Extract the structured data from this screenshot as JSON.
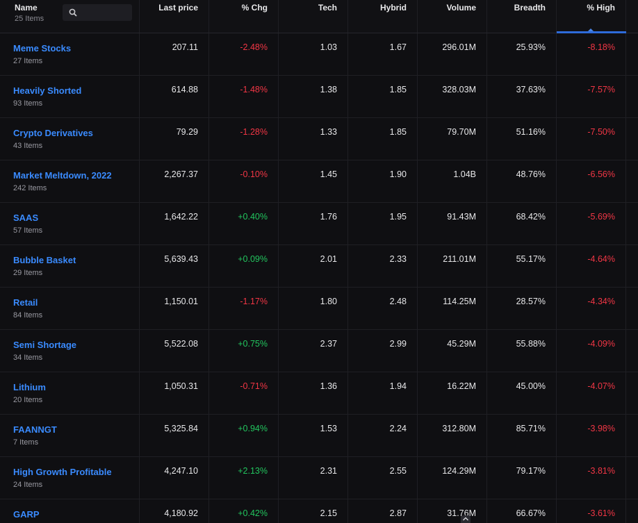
{
  "header": {
    "name_label": "Name",
    "items_count": "25 Items",
    "search_icon": "search-icon",
    "columns": [
      "Last price",
      "% Chg",
      "Tech",
      "Hybrid",
      "Volume",
      "Breadth",
      "% High"
    ],
    "sorted_column": "% High",
    "accent_color": "#2e6bd9"
  },
  "colors": {
    "negative": "#f23645",
    "positive": "#22c55e",
    "link": "#3a8bff"
  },
  "rows": [
    {
      "name": "Meme Stocks",
      "count": "27 Items",
      "last_price": "207.11",
      "chg": "-2.48%",
      "tech": "1.03",
      "hybrid": "1.67",
      "volume": "296.01M",
      "breadth": "25.93%",
      "high": "-8.18%"
    },
    {
      "name": "Heavily Shorted",
      "count": "93 Items",
      "last_price": "614.88",
      "chg": "-1.48%",
      "tech": "1.38",
      "hybrid": "1.85",
      "volume": "328.03M",
      "breadth": "37.63%",
      "high": "-7.57%"
    },
    {
      "name": "Crypto Derivatives",
      "count": "43 Items",
      "last_price": "79.29",
      "chg": "-1.28%",
      "tech": "1.33",
      "hybrid": "1.85",
      "volume": "79.70M",
      "breadth": "51.16%",
      "high": "-7.50%"
    },
    {
      "name": "Market Meltdown, 2022",
      "count": "242 Items",
      "last_price": "2,267.37",
      "chg": "-0.10%",
      "tech": "1.45",
      "hybrid": "1.90",
      "volume": "1.04B",
      "breadth": "48.76%",
      "high": "-6.56%"
    },
    {
      "name": "SAAS",
      "count": "57 Items",
      "last_price": "1,642.22",
      "chg": "+0.40%",
      "tech": "1.76",
      "hybrid": "1.95",
      "volume": "91.43M",
      "breadth": "68.42%",
      "high": "-5.69%"
    },
    {
      "name": "Bubble Basket",
      "count": "29 Items",
      "last_price": "5,639.43",
      "chg": "+0.09%",
      "tech": "2.01",
      "hybrid": "2.33",
      "volume": "211.01M",
      "breadth": "55.17%",
      "high": "-4.64%"
    },
    {
      "name": "Retail",
      "count": "84 Items",
      "last_price": "1,150.01",
      "chg": "-1.17%",
      "tech": "1.80",
      "hybrid": "2.48",
      "volume": "114.25M",
      "breadth": "28.57%",
      "high": "-4.34%"
    },
    {
      "name": "Semi Shortage",
      "count": "34 Items",
      "last_price": "5,522.08",
      "chg": "+0.75%",
      "tech": "2.37",
      "hybrid": "2.99",
      "volume": "45.29M",
      "breadth": "55.88%",
      "high": "-4.09%"
    },
    {
      "name": "Lithium",
      "count": "20 Items",
      "last_price": "1,050.31",
      "chg": "-0.71%",
      "tech": "1.36",
      "hybrid": "1.94",
      "volume": "16.22M",
      "breadth": "45.00%",
      "high": "-4.07%"
    },
    {
      "name": "FAANNGT",
      "count": "7 Items",
      "last_price": "5,325.84",
      "chg": "+0.94%",
      "tech": "1.53",
      "hybrid": "2.24",
      "volume": "312.80M",
      "breadth": "85.71%",
      "high": "-3.98%"
    },
    {
      "name": "High Growth Profitable",
      "count": "24 Items",
      "last_price": "4,247.10",
      "chg": "+2.13%",
      "tech": "2.31",
      "hybrid": "2.55",
      "volume": "124.29M",
      "breadth": "79.17%",
      "high": "-3.81%"
    },
    {
      "name": "GARP",
      "count": "",
      "last_price": "4,180.92",
      "chg": "+0.42%",
      "tech": "2.15",
      "hybrid": "2.87",
      "volume": "31.76M",
      "breadth": "66.67%",
      "high": "-3.61%"
    }
  ]
}
